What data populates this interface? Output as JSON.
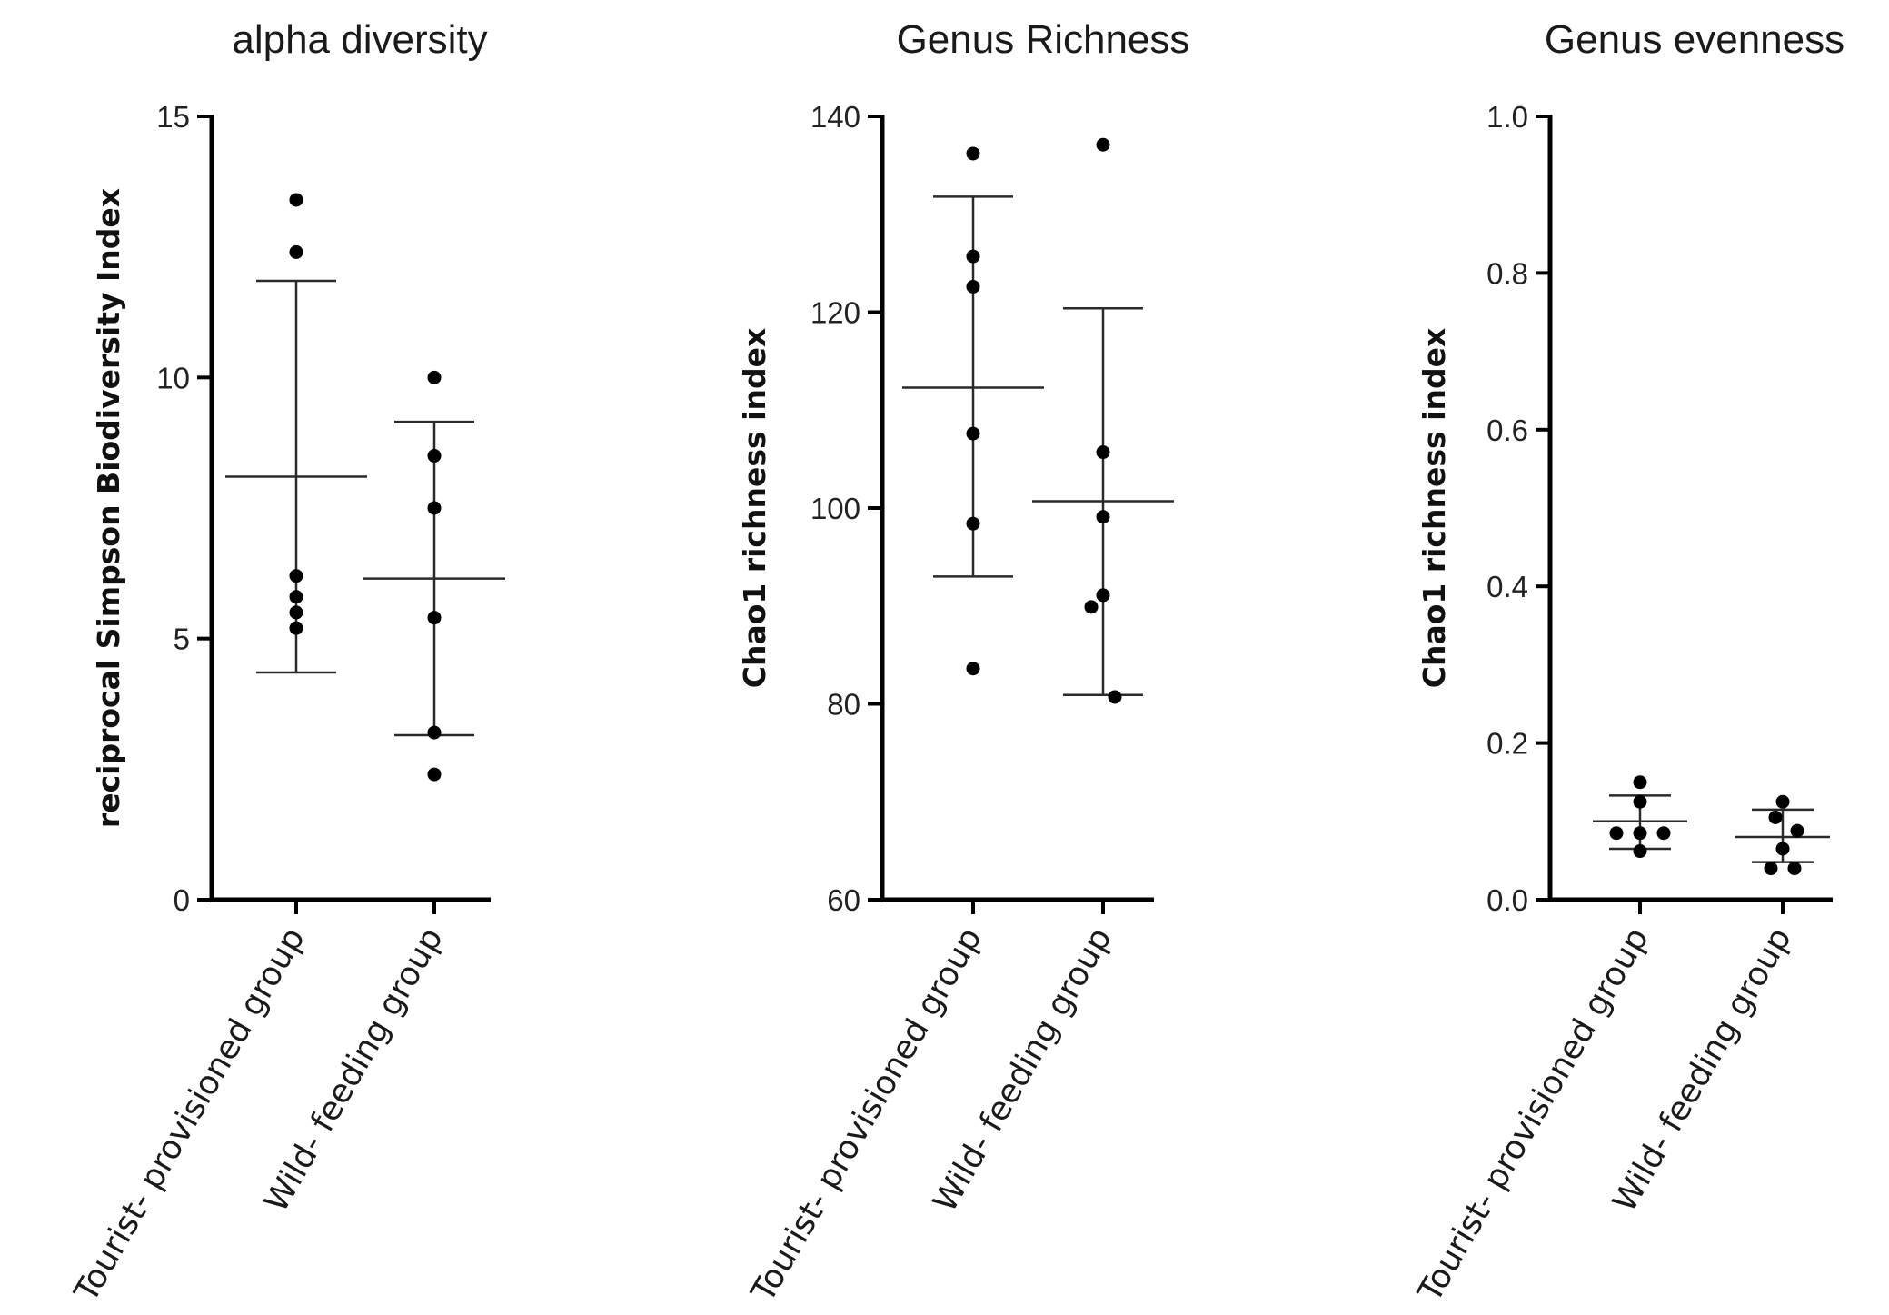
{
  "chart_data": [
    {
      "type": "scatter",
      "title": "alpha diversity",
      "ylabel": "reciprocal Simpson Biodiversity Index",
      "xlabel": "",
      "ylim": [
        0,
        15
      ],
      "yticks": [
        0,
        5,
        10,
        15
      ],
      "ytick_labels": [
        "0",
        "5",
        "10",
        "15"
      ],
      "categories": [
        "Tourist- provisioned group",
        "Wild- feeding group"
      ],
      "series": [
        {
          "name": "Tourist- provisioned group",
          "values": [
            13.4,
            12.4,
            6.2,
            5.8,
            5.5,
            5.2
          ],
          "mean": 8.1,
          "sd_low": 4.35,
          "sd_high": 11.85
        },
        {
          "name": "Wild- feeding group",
          "values": [
            10.0,
            8.5,
            7.5,
            5.4,
            3.2,
            2.4
          ],
          "mean": 6.15,
          "sd_low": 3.15,
          "sd_high": 9.15
        }
      ]
    },
    {
      "type": "scatter",
      "title": "Genus Richness",
      "ylabel": "Chao1 richness index",
      "xlabel": "",
      "ylim": [
        60,
        140
      ],
      "yticks": [
        60,
        80,
        100,
        120,
        140
      ],
      "ytick_labels": [
        "60",
        "80",
        "100",
        "120",
        "140"
      ],
      "categories": [
        "Tourist- provisioned group",
        "Wild- feeding group"
      ],
      "series": [
        {
          "name": "Tourist- provisioned group",
          "values": [
            136.2,
            125.7,
            122.6,
            107.6,
            98.4,
            83.6
          ],
          "mean": 112.3,
          "sd_low": 93.0,
          "sd_high": 131.8
        },
        {
          "name": "Wild- feeding group",
          "values": [
            137.1,
            105.7,
            99.1,
            91.1,
            89.9,
            80.7
          ],
          "mean": 100.7,
          "sd_low": 80.9,
          "sd_high": 120.4
        }
      ]
    },
    {
      "type": "scatter",
      "title": "Genus evenness",
      "ylabel": "Chao1 richness index",
      "xlabel": "",
      "ylim": [
        0.0,
        1.0
      ],
      "yticks": [
        0.0,
        0.2,
        0.4,
        0.6,
        0.8,
        1.0
      ],
      "ytick_labels": [
        "0.0",
        "0.2",
        "0.4",
        "0.6",
        "0.8",
        "1.0"
      ],
      "categories": [
        "Tourist- provisioned group",
        "Wild- feeding group"
      ],
      "series": [
        {
          "name": "Tourist- provisioned group",
          "values": [
            0.15,
            0.125,
            0.085,
            0.085,
            0.085,
            0.062
          ],
          "mean": 0.1,
          "sd_low": 0.065,
          "sd_high": 0.133
        },
        {
          "name": "Wild- feeding group",
          "values": [
            0.125,
            0.105,
            0.088,
            0.065,
            0.04,
            0.04
          ],
          "mean": 0.08,
          "sd_low": 0.048,
          "sd_high": 0.115
        }
      ]
    }
  ]
}
